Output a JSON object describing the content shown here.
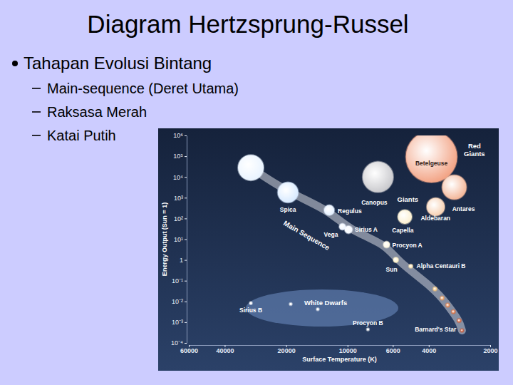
{
  "slide": {
    "title": "Diagram Hertzsprung-Russel",
    "bullets": [
      {
        "text": "Tahapan Evolusi Bintang",
        "items": [
          "Main-sequence (Deret Utama)",
          "Raksasa Merah",
          "Katai Putih"
        ]
      }
    ]
  },
  "chart_data": {
    "type": "scatter",
    "log": true,
    "xlabel": "Surface Temperature (K)",
    "ylabel": "Energy Output (Sun = 1)",
    "xlim": [
      60000,
      2000
    ],
    "xticks": [
      60000,
      40000,
      20000,
      10000,
      6000,
      4000,
      2000
    ],
    "ylim": [
      0.0001,
      1000000
    ],
    "yticks": [
      {
        "value": 1000000,
        "label": "10⁶"
      },
      {
        "value": 100000,
        "label": "10⁵"
      },
      {
        "value": 10000,
        "label": "10⁴"
      },
      {
        "value": 1000,
        "label": "10³"
      },
      {
        "value": 100,
        "label": "10²"
      },
      {
        "value": 10,
        "label": "10¹"
      },
      1,
      {
        "value": 0.1,
        "label": "10⁻¹"
      },
      {
        "value": 0.01,
        "label": "10⁻²"
      },
      {
        "value": 0.001,
        "label": "10⁻³"
      },
      {
        "value": 0.0001,
        "label": "10⁻⁴"
      }
    ],
    "point_labels": [
      null,
      "Spica",
      "Canopus",
      "Betelgeuse",
      "Antares",
      "Aldebaran",
      "Capella",
      "Regulus",
      "Vega",
      "Sirius A",
      "Procyon A",
      "Sun",
      "Alpha Centauri B",
      null,
      null,
      null,
      null,
      null,
      "Barnard's Star",
      "Sirius B",
      null,
      null,
      "Procyon B"
    ],
    "x": [
      29800,
      19600,
      7100,
      3880,
      3000,
      3700,
      5240,
      12300,
      10600,
      9900,
      6440,
      5800,
      4900,
      3730,
      3440,
      3230,
      3030,
      2840,
      2750,
      29800,
      19000,
      14000,
      7950
    ],
    "values": [
      28000,
      1800,
      10000,
      93000,
      3200,
      360,
      120,
      250,
      40,
      29,
      5.5,
      1,
      0.5,
      0.04,
      0.0145,
      0.0066,
      0.0032,
      0.0012,
      0.0004,
      0.0083,
      0.0075,
      0.0042,
      0.00045
    ],
    "size": [
      20,
      16,
      24,
      40,
      19,
      14,
      11,
      8,
      5,
      6,
      5,
      4,
      3,
      3,
      3,
      3,
      3,
      3,
      2.5,
      2,
      2,
      2,
      2
    ],
    "colors": [
      "#e8f3ff",
      "#d6e9ff",
      "#c8c8cc",
      "#f2a283",
      "#f3b597",
      "#f6cfb0",
      "#fbefcf",
      "#e2efff",
      "#eef5ff",
      "#f4f8ff",
      "#fff8e2",
      "#fff1c4",
      "#ffe6b0",
      "#f2c37c",
      "#e89a5a",
      "#e07f48",
      "#d86c3e",
      "#d05c34",
      "#c9502c",
      "#ffffff",
      "#ffffff",
      "#ffffff",
      "#ffffff"
    ],
    "annotations": [
      {
        "text": "Red Giants",
        "x": 2390,
        "y": 240000
      },
      {
        "text": "Giants",
        "x": 5710,
        "y": 630
      },
      {
        "text": "Main Sequence",
        "x": 16100,
        "y": 12
      },
      {
        "text": "White Dwarfs",
        "x": 16300,
        "y": 0.0066
      }
    ]
  }
}
